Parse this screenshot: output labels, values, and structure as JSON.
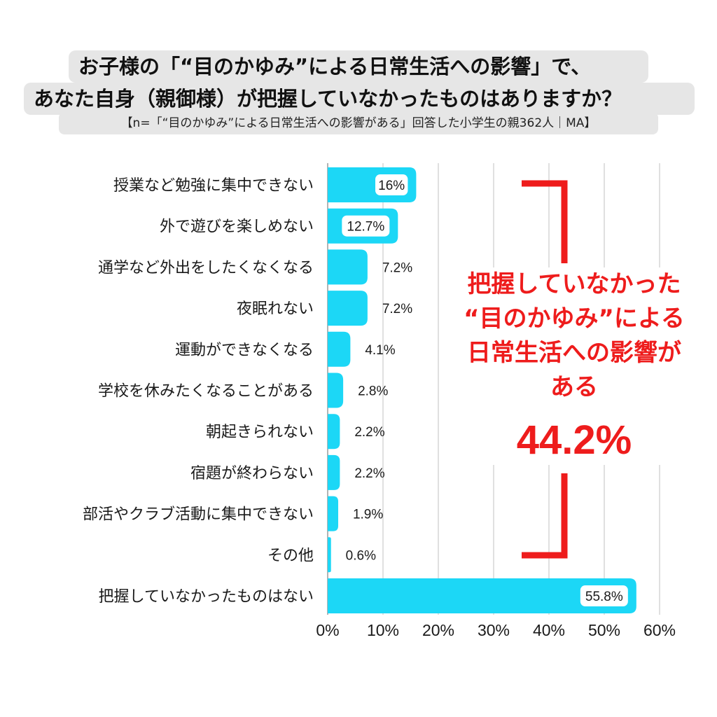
{
  "title": {
    "line1": "お子様の「“目のかゆみ”による日常生活への影響」で、",
    "line2": "あなた自身（親御様）が把握していなかったものはありますか？",
    "subtitle": "【n=「“目のかゆみ”による日常生活への影響がある」回答した小学生の親362人｜MA】"
  },
  "callout": {
    "text": "把握していなかった\n“目のかゆみ”による\n日常生活への影響が\nある",
    "value": "44.2%",
    "color": "#ee1c1c"
  },
  "chart_data": {
    "type": "bar",
    "orientation": "horizontal",
    "categories": [
      "授業など勉強に集中できない",
      "外で遊びを楽しめない",
      "通学など外出をしたくなくなる",
      "夜眠れない",
      "運動ができなくなる",
      "学校を休みたくなることがある",
      "朝起きられない",
      "宿題が終わらない",
      "部活やクラブ活動に集中できない",
      "その他",
      "把握していなかったものはない"
    ],
    "values": [
      16,
      12.7,
      7.2,
      7.2,
      4.1,
      2.8,
      2.2,
      2.2,
      1.9,
      0.6,
      55.8
    ],
    "value_labels": [
      "16%",
      "12.7%",
      "7.2%",
      "7.2%",
      "4.1%",
      "2.8%",
      "2.2%",
      "2.2%",
      "1.9%",
      "0.6%",
      "55.8%"
    ],
    "xticks": [
      "0%",
      "10%",
      "20%",
      "30%",
      "40%",
      "50%",
      "60%"
    ],
    "xlim": [
      0,
      60
    ],
    "bar_color": "#1cd7f6",
    "grid": true
  }
}
